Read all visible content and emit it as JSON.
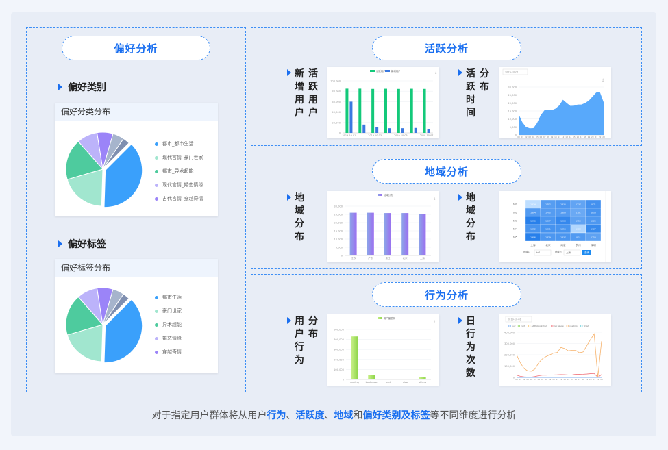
{
  "left": {
    "title": "偏好分析",
    "category": {
      "section": "偏好类别",
      "card_title": "偏好分类分布",
      "legend": [
        "都市_都市生活",
        "现代言情_豪门世家",
        "都市_异术超能",
        "现代言情_婚恋情缘",
        "古代言情_穿越奇情"
      ]
    },
    "tag": {
      "section": "偏好标签",
      "card_title": "偏好标签分布",
      "legend": [
        "都市生活",
        "豪门世家",
        "异术超能",
        "婚恋情缘",
        "穿越奇情"
      ]
    }
  },
  "activity": {
    "title": "活跃分析",
    "label1": "新增用户",
    "label2": "活跃用户",
    "label3": "活跃时间",
    "label4": "分布"
  },
  "region": {
    "title": "地域分析",
    "label1": "地域分布",
    "label2": "地域分布"
  },
  "behavior": {
    "title": "行为分析",
    "label1": "用户行为",
    "label2": "分布",
    "label3": "日行为次数"
  },
  "footer": {
    "p1": "对于指定用户群体将从用户",
    "h1": "行为",
    "p2": "、",
    "h2": "活跃度",
    "p3": "、",
    "h3": "地域",
    "p4": "和",
    "h4": "偏好类别及标签",
    "p5": "等不同维度进行分析"
  },
  "colors": {
    "accent": "#1a6ff0",
    "pie": [
      "#3aa0fb",
      "#a1e6cf",
      "#4ecb9e",
      "#bcb3fa",
      "#9b84f8",
      "#a6b4cc",
      "#7f8fb0"
    ]
  },
  "chart_data": [
    {
      "id": "pie-category",
      "type": "pie",
      "values": [
        38,
        20,
        18,
        9,
        7,
        5,
        3
      ],
      "labels": [
        "都市_都市生活",
        "现代言情_豪门世家",
        "都市_异术超能",
        "现代言情_婚恋情缘",
        "古代言情_穿越奇情",
        "",
        ""
      ]
    },
    {
      "id": "pie-tag",
      "type": "pie",
      "values": [
        38,
        20,
        18,
        9,
        7,
        5,
        3
      ],
      "labels": [
        "都市生活",
        "豪门世家",
        "异术超能",
        "婚恋情缘",
        "穿越奇情",
        "",
        ""
      ]
    },
    {
      "id": "new-active",
      "type": "bar",
      "categories": [
        "2019-10-01",
        "2019-10-02",
        "2019-10-03",
        "2019-10-04",
        "2019-10-05",
        "2019-10-06",
        "2019-10-07"
      ],
      "shown_ticks": [
        "2019-10-01",
        "2019-10-03",
        "2019-10-05",
        "2019-10-07"
      ],
      "series": [
        {
          "name": "活跃用户",
          "color": "#13c97a",
          "values": [
            85000,
            85000,
            84500,
            84800,
            84500,
            84800,
            84500
          ]
        },
        {
          "name": "新增用户",
          "color": "#3a78e0",
          "values": [
            60000,
            16000,
            11000,
            9000,
            9000,
            9500,
            7500
          ]
        }
      ],
      "ylim": [
        0,
        100000
      ],
      "yticks": [
        "0",
        "20,000",
        "40,000",
        "60,000",
        "80,000",
        "100,000"
      ]
    },
    {
      "id": "active-time",
      "type": "area",
      "date": "2019-10-01",
      "x": [
        "00",
        "01",
        "02",
        "03",
        "04",
        "05",
        "06",
        "07",
        "08",
        "09",
        "10",
        "11",
        "12",
        "13",
        "14",
        "15",
        "16",
        "17",
        "18",
        "19",
        "20",
        "21",
        "22",
        "23"
      ],
      "values": [
        13000,
        8000,
        5000,
        4200,
        4300,
        7500,
        12500,
        15500,
        15800,
        15500,
        16500,
        18500,
        22000,
        20000,
        18200,
        18300,
        19000,
        19000,
        20000,
        21500,
        24000,
        26500,
        26800,
        20500
      ],
      "ylim": [
        0,
        30000
      ],
      "yticks": [
        "0",
        "5,000",
        "10,000",
        "15,000",
        "20,000",
        "25,000",
        "30,000"
      ],
      "color": "#58a9fb"
    },
    {
      "id": "region-bar",
      "type": "bar",
      "legend": "地域分布",
      "categories": [
        "江苏",
        "广东",
        "浙江",
        "北京",
        "上海"
      ],
      "values": [
        26000,
        26000,
        25800,
        25800,
        25200
      ],
      "ylim": [
        0,
        30000
      ],
      "yticks": [
        "0",
        "5,000",
        "10,000",
        "15,000",
        "20,000",
        "25,000",
        "30,000"
      ]
    },
    {
      "id": "region-heatmap",
      "type": "heatmap",
      "rows": [
        "td1",
        "td2",
        "td3",
        "td4",
        "td5"
      ],
      "cols": [
        "上海",
        "北京",
        "南京",
        "杭州",
        "深圳"
      ],
      "values": [
        [
          1324,
          1792,
          1836,
          1737,
          1871
        ],
        [
          1804,
          1795,
          1800,
          1701,
          1853
        ],
        [
          1996,
          1837,
          1938,
          1750,
          1825
        ],
        [
          1852,
          1861,
          1856,
          1384,
          1927
        ],
        [
          1996,
          1829,
          1837,
          1811,
          1750
        ]
      ],
      "filter": {
        "label1": "地域1:",
        "value1": "td1",
        "label2": "地域2:",
        "value2": "上海",
        "button": "查询"
      }
    },
    {
      "id": "user-behavior",
      "type": "bar",
      "legend": "用户量总和",
      "categories": [
        "reading",
        "bookshow",
        "cart",
        "view",
        "others"
      ],
      "values": [
        430000,
        45000,
        0,
        0,
        22000
      ],
      "ylim": [
        0,
        500000
      ],
      "yticks": [
        "0",
        "100,000",
        "200,000",
        "300,000",
        "400,000",
        "500,000"
      ]
    },
    {
      "id": "daily-behavior",
      "type": "line",
      "date": "2019-10-01",
      "legend": [
        "buy",
        "cart",
        "addtobookshelf",
        "rec_show",
        "reading",
        "finish"
      ],
      "x": [
        "00",
        "01",
        "02",
        "03",
        "04",
        "05",
        "06",
        "07",
        "08",
        "09",
        "10",
        "11",
        "12",
        "13",
        "14",
        "15",
        "16",
        "17",
        "18",
        "19",
        "20",
        "21",
        "22",
        "23"
      ],
      "series": [
        {
          "name": "reading",
          "color": "#f6b26b",
          "values": [
            200000,
            130000,
            80000,
            58000,
            55000,
            75000,
            130000,
            165000,
            185000,
            200000,
            215000,
            220000,
            265000,
            255000,
            235000,
            240000,
            240000,
            218000,
            225000,
            280000,
            335000,
            385000,
            0,
            320000
          ]
        },
        {
          "name": "rec_show",
          "color": "#f0727a",
          "values": [
            20000,
            10000,
            5000,
            3000,
            3000,
            8000,
            15000,
            20000,
            20000,
            22000,
            22000,
            23000,
            25000,
            24000,
            22000,
            22000,
            28000,
            27000,
            28000,
            30000,
            33000,
            35000,
            0,
            25000
          ]
        },
        {
          "name": "buy",
          "color": "#5b9cf0",
          "values": [
            0,
            0,
            0,
            0,
            0,
            0,
            0,
            0,
            0,
            0,
            0,
            0,
            0,
            0,
            0,
            0,
            0,
            0,
            0,
            0,
            0,
            0,
            0,
            0
          ]
        }
      ],
      "ylim": [
        0,
        400000
      ],
      "yticks": [
        "0",
        "100,000",
        "200,000",
        "300,000",
        "400,000"
      ]
    }
  ]
}
